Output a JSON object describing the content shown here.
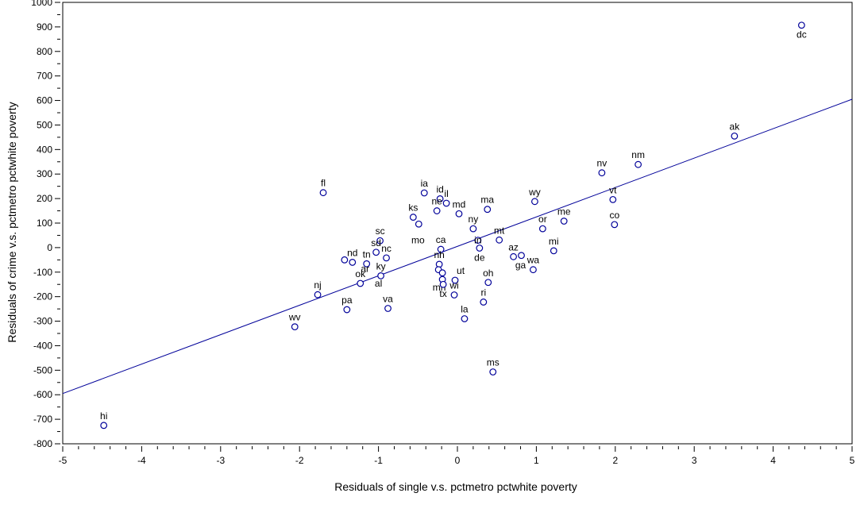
{
  "chart_data": {
    "type": "scatter",
    "title": "",
    "xlabel": "Residuals of single v.s. pctmetro pctwhite poverty",
    "ylabel": "Residuals of crime v.s. pctmetro pctwhite poverty",
    "xlim": [
      -5,
      5
    ],
    "ylim": [
      -800,
      1000
    ],
    "x_ticks": [
      -5,
      -4,
      -3,
      -2,
      -1,
      0,
      1,
      2,
      3,
      4,
      5
    ],
    "y_ticks": [
      -800,
      -700,
      -600,
      -500,
      -400,
      -300,
      -200,
      -100,
      0,
      100,
      200,
      300,
      400,
      500,
      600,
      700,
      800,
      900,
      1000
    ],
    "grid": false,
    "marker_color": "#000099",
    "line_color": "#000099",
    "fit_line": {
      "x1": -5,
      "y1": -595,
      "x2": 5,
      "y2": 605
    },
    "points": [
      {
        "label": "dc",
        "x": 4.36,
        "y": 907,
        "label_pos": "below"
      },
      {
        "label": "ak",
        "x": 3.51,
        "y": 455,
        "label_pos": "above"
      },
      {
        "label": "nm",
        "x": 2.29,
        "y": 339,
        "label_pos": "above"
      },
      {
        "label": "nv",
        "x": 1.83,
        "y": 305,
        "label_pos": "above"
      },
      {
        "label": "vt",
        "x": 1.97,
        "y": 196,
        "label_pos": "above"
      },
      {
        "label": "co",
        "x": 1.99,
        "y": 94,
        "label_pos": "above"
      },
      {
        "label": "me",
        "x": 1.35,
        "y": 108,
        "label_pos": "above"
      },
      {
        "label": "or",
        "x": 1.08,
        "y": 77,
        "label_pos": "above"
      },
      {
        "label": "mi",
        "x": 1.22,
        "y": -13,
        "label_pos": "above"
      },
      {
        "label": "wy",
        "x": 0.98,
        "y": 188,
        "label_pos": "above"
      },
      {
        "label": "wa",
        "x": 0.96,
        "y": -90,
        "label_pos": "above"
      },
      {
        "label": "az",
        "x": 0.71,
        "y": -37,
        "label_pos": "above"
      },
      {
        "label": "ga",
        "x": 0.81,
        "y": -32,
        "label_pos": "belowright"
      },
      {
        "label": "mt",
        "x": 0.53,
        "y": 31,
        "label_pos": "above"
      },
      {
        "label": "ma",
        "x": 0.38,
        "y": 156,
        "label_pos": "above"
      },
      {
        "label": "ms",
        "x": 0.45,
        "y": -507,
        "label_pos": "above"
      },
      {
        "label": "ny",
        "x": 0.2,
        "y": 77,
        "label_pos": "above"
      },
      {
        "label": "in",
        "x": 0.26,
        "y": 30,
        "label_pos": "center"
      },
      {
        "label": "de",
        "x": 0.28,
        "y": -2,
        "label_pos": "below"
      },
      {
        "label": "oh",
        "x": 0.39,
        "y": -142,
        "label_pos": "above"
      },
      {
        "label": "ri",
        "x": 0.33,
        "y": -222,
        "label_pos": "above"
      },
      {
        "label": "la",
        "x": 0.09,
        "y": -290,
        "label_pos": "above"
      },
      {
        "label": "md",
        "x": 0.02,
        "y": 138,
        "label_pos": "above"
      },
      {
        "label": "ut",
        "x": -0.03,
        "y": -133,
        "label_pos": "aboveright"
      },
      {
        "label": "wi",
        "x": -0.04,
        "y": -193,
        "label_pos": "above"
      },
      {
        "label": "il",
        "x": -0.14,
        "y": 181,
        "label_pos": "above"
      },
      {
        "label": "id",
        "x": -0.22,
        "y": 199,
        "label_pos": "above"
      },
      {
        "label": "ne",
        "x": -0.26,
        "y": 150,
        "label_pos": "above"
      },
      {
        "label": "ia",
        "x": -0.42,
        "y": 223,
        "label_pos": "above"
      },
      {
        "label": "ks",
        "x": -0.56,
        "y": 124,
        "label_pos": "above"
      },
      {
        "label": "ks2",
        "x": -0.49,
        "y": 96,
        "label_pos": "none"
      },
      {
        "label": "ca",
        "x": -0.21,
        "y": -7,
        "label_pos": "above"
      },
      {
        "label": "mo",
        "x": -0.5,
        "y": 30,
        "label_pos": "textonly"
      },
      {
        "label": "nh",
        "x": -0.23,
        "y": -68,
        "label_pos": "above"
      },
      {
        "label": "nh2",
        "x": -0.24,
        "y": -90,
        "label_pos": "none"
      },
      {
        "label": "nh3",
        "x": -0.19,
        "y": -103,
        "label_pos": "none"
      },
      {
        "label": "mn",
        "x": -0.19,
        "y": -130,
        "label_pos": "belowleft"
      },
      {
        "label": "tx",
        "x": -0.18,
        "y": -150,
        "label_pos": "below"
      },
      {
        "label": "fl",
        "x": -1.7,
        "y": 224,
        "label_pos": "above"
      },
      {
        "label": "sc",
        "x": -0.98,
        "y": 28,
        "label_pos": "above"
      },
      {
        "label": "sd",
        "x": -1.03,
        "y": -19,
        "label_pos": "above"
      },
      {
        "label": "nc",
        "x": -0.9,
        "y": -42,
        "label_pos": "above"
      },
      {
        "label": "nd",
        "x": -1.33,
        "y": -60,
        "label_pos": "above"
      },
      {
        "label": "tn",
        "x": -1.15,
        "y": -66,
        "label_pos": "above"
      },
      {
        "label": "tn2",
        "x": -1.43,
        "y": -50,
        "label_pos": "none"
      },
      {
        "label": "ar",
        "x": -1.17,
        "y": -86,
        "label_pos": "textonly"
      },
      {
        "label": "ky",
        "x": -0.97,
        "y": -115,
        "label_pos": "above"
      },
      {
        "label": "ok",
        "x": -1.23,
        "y": -146,
        "label_pos": "above"
      },
      {
        "label": "al",
        "x": -1.0,
        "y": -146,
        "label_pos": "textonly"
      },
      {
        "label": "nj",
        "x": -1.77,
        "y": -192,
        "label_pos": "above"
      },
      {
        "label": "pa",
        "x": -1.4,
        "y": -253,
        "label_pos": "above"
      },
      {
        "label": "va",
        "x": -0.88,
        "y": -248,
        "label_pos": "above"
      },
      {
        "label": "wv",
        "x": -2.06,
        "y": -323,
        "label_pos": "above"
      },
      {
        "label": "hi",
        "x": -4.48,
        "y": -725,
        "label_pos": "above"
      }
    ]
  }
}
